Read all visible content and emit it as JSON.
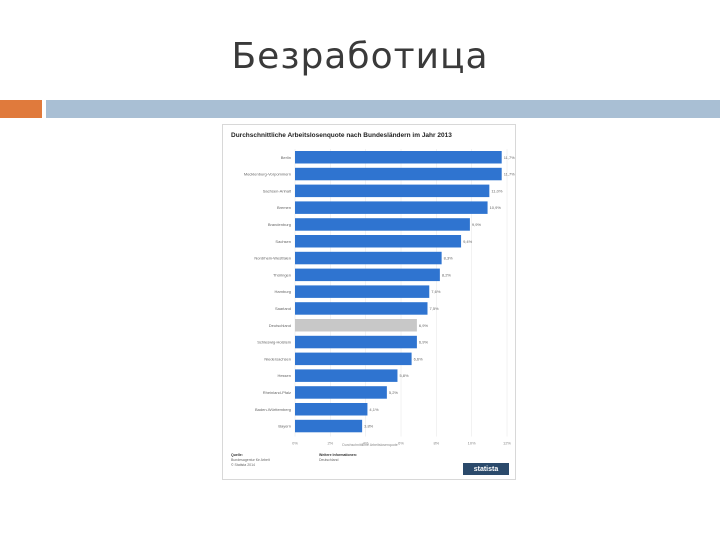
{
  "slide": {
    "title": "Безработица"
  },
  "chart_card": {
    "footer": {
      "source_title": "Quelle:",
      "source_lines": [
        "Bundesagentur für Arbeit",
        "© Statista 2014"
      ],
      "info_title": "Weitere Informationen:",
      "info_lines": [
        "Deutschland"
      ],
      "logo": "statista"
    }
  },
  "chart_data": {
    "type": "bar",
    "orientation": "horizontal",
    "title": "Durchschnittliche Arbeitslosenquote nach Bundesländern im Jahr 2013",
    "xlabel": "Durchschnittliche Arbeitslosenquote",
    "xlim": [
      0,
      12
    ],
    "x_ticks": [
      "0%",
      "2%",
      "4%",
      "6%",
      "8%",
      "10%",
      "12%"
    ],
    "grid": true,
    "categories": [
      "Berlin",
      "Mecklenburg-Vorpommern",
      "Sachsen-Anhalt",
      "Bremen",
      "Brandenburg",
      "Sachsen",
      "Nordrhein-Westfalen",
      "Thüringen",
      "Hamburg",
      "Saarland",
      "Deutschland",
      "Schleswig-Holstein",
      "Niedersachsen",
      "Hessen",
      "Rheinland-Pfalz",
      "Baden-Württemberg",
      "Bayern"
    ],
    "values": [
      11.7,
      11.7,
      11.0,
      10.9,
      9.9,
      9.4,
      8.3,
      8.2,
      7.6,
      7.5,
      6.9,
      6.9,
      6.6,
      5.8,
      5.2,
      4.1,
      3.8
    ],
    "value_labels": [
      "11,7%",
      "11,7%",
      "11,0%",
      "10,9%",
      "9,9%",
      "9,4%",
      "8,3%",
      "8,2%",
      "7,6%",
      "7,5%",
      "6,9%",
      "6,9%",
      "6,6%",
      "5,8%",
      "5,2%",
      "4,1%",
      "3,8%"
    ],
    "highlight": "Deutschland",
    "bar_color": "#2f74d0",
    "highlight_color": "#c8c8c8"
  }
}
